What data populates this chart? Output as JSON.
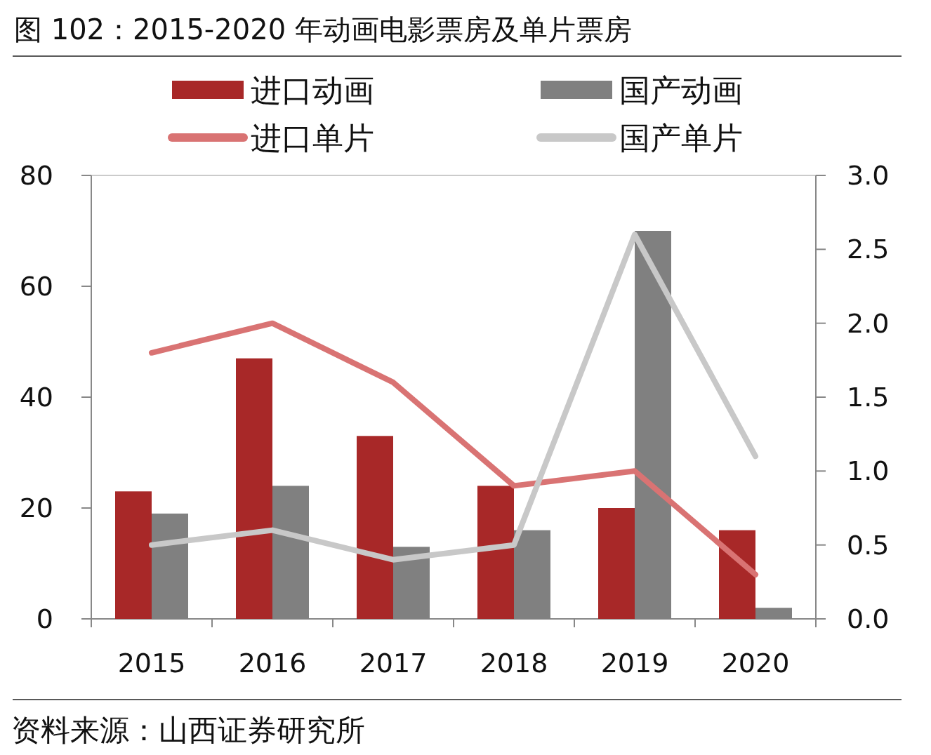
{
  "chart_data": {
    "type": "bar",
    "title": "图 102：2015-2020 年动画电影票房及单片票房",
    "categories": [
      "2015",
      "2016",
      "2017",
      "2018",
      "2019",
      "2020"
    ],
    "series": [
      {
        "name": "进口动画",
        "color": "#a82828",
        "values": [
          23,
          47,
          33,
          24,
          20,
          16
        ]
      },
      {
        "name": "国产动画",
        "color": "#808080",
        "values": [
          19,
          24,
          13,
          16,
          70,
          2
        ]
      },
      {
        "name": "进口单片",
        "type": "line",
        "axis": "y2",
        "color": "#d97373",
        "values": [
          1.8,
          2.0,
          1.6,
          0.9,
          1.0,
          0.3
        ]
      },
      {
        "name": "国产单片",
        "type": "line",
        "axis": "y2",
        "color": "#c8c8c8",
        "values": [
          0.5,
          0.6,
          0.4,
          0.5,
          2.6,
          1.1
        ]
      }
    ],
    "ylim": [
      0,
      80
    ],
    "yticks": [
      0,
      20,
      40,
      60,
      80
    ],
    "y2lim": [
      0,
      3
    ],
    "y2ticks": [
      {
        "value": 0,
        "label": "0.0"
      },
      0.5,
      {
        "value": 1,
        "label": "1.0"
      },
      1.5,
      {
        "value": 2,
        "label": "2.0"
      },
      2.5,
      {
        "value": 3,
        "label": "3.0"
      }
    ],
    "legend": "top",
    "grid": false,
    "annotations": [
      "资料来源：山西证券研究所"
    ]
  }
}
